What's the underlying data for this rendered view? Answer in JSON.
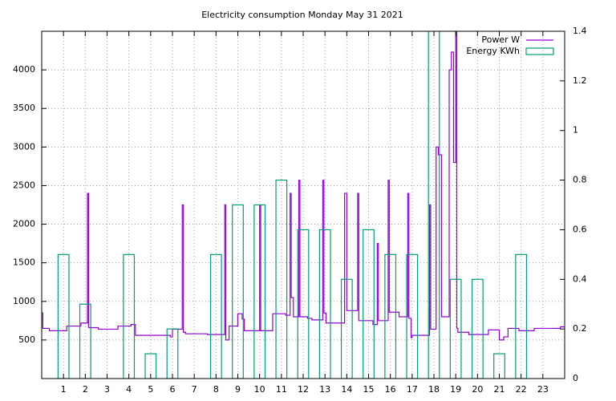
{
  "chart_data": {
    "type": "line",
    "title": "Electricity consumption Monday May 31 2021",
    "xlim": [
      0,
      24
    ],
    "xticks": [
      1,
      2,
      3,
      4,
      5,
      6,
      7,
      8,
      9,
      10,
      11,
      12,
      13,
      14,
      15,
      16,
      17,
      18,
      19,
      20,
      21,
      22,
      23
    ],
    "ylim": [
      0,
      4500
    ],
    "yticks": [
      500,
      1000,
      1500,
      2000,
      2500,
      3000,
      3500,
      4000
    ],
    "y2lim": [
      0,
      1.4
    ],
    "y2ticks": [
      0,
      0.2,
      0.4,
      0.6,
      0.8,
      1,
      1.2,
      1.4
    ],
    "grid": true,
    "legend": "top-right",
    "series": [
      {
        "name": "Power W",
        "color": "#9400d3",
        "x": [
          0,
          0.05,
          0.35,
          1.15,
          1.8,
          2.1,
          2.15,
          2.6,
          3.5,
          4.1,
          4.3,
          5.9,
          6,
          6.45,
          6.5,
          6.6,
          7.6,
          8.4,
          8.45,
          8.6,
          9.0,
          9.2,
          9.3,
          10.0,
          10.05,
          10.6,
          11.2,
          11.4,
          11.45,
          11.55,
          11.8,
          11.85,
          12.2,
          12.4,
          12.9,
          12.95,
          13.05,
          13.9,
          14.0,
          14.5,
          14.55,
          15.2,
          15.4,
          15.45,
          15.9,
          15.95,
          16.4,
          16.8,
          16.85,
          16.95,
          17.0,
          17.8,
          17.85,
          18.1,
          18.2,
          18.35,
          18.7,
          18.8,
          18.9,
          19.0,
          19.05,
          19.1,
          19.6,
          20.5,
          21.0,
          21.2,
          21.4,
          21.9,
          22.6,
          23.8,
          24
        ],
        "values": [
          850,
          650,
          620,
          680,
          720,
          2400,
          660,
          640,
          680,
          700,
          560,
          540,
          640,
          2250,
          600,
          580,
          570,
          2250,
          500,
          680,
          840,
          770,
          620,
          2250,
          620,
          840,
          820,
          2400,
          1050,
          800,
          2570,
          800,
          780,
          760,
          2570,
          850,
          720,
          2400,
          880,
          2400,
          750,
          700,
          1750,
          750,
          2570,
          860,
          800,
          2400,
          780,
          530,
          560,
          2250,
          640,
          3000,
          2900,
          800,
          4000,
          4230,
          2800,
          4500,
          650,
          600,
          570,
          630,
          500,
          540,
          650,
          620,
          650,
          670,
          670
        ]
      },
      {
        "name": "Energy KWh",
        "color": "#009e73",
        "axis": "y2",
        "x": [
          1,
          2,
          4,
          5,
          6,
          8,
          9,
          10,
          11,
          12,
          13,
          14,
          15,
          16,
          17,
          18,
          19,
          20,
          21,
          22
        ],
        "values": [
          0.5,
          0.3,
          0.5,
          0.1,
          0.2,
          0.5,
          0.7,
          0.7,
          0.8,
          0.6,
          0.6,
          0.4,
          0.6,
          0.5,
          0.5,
          1.5,
          0.4,
          0.4,
          0.1,
          0.5
        ]
      }
    ]
  }
}
